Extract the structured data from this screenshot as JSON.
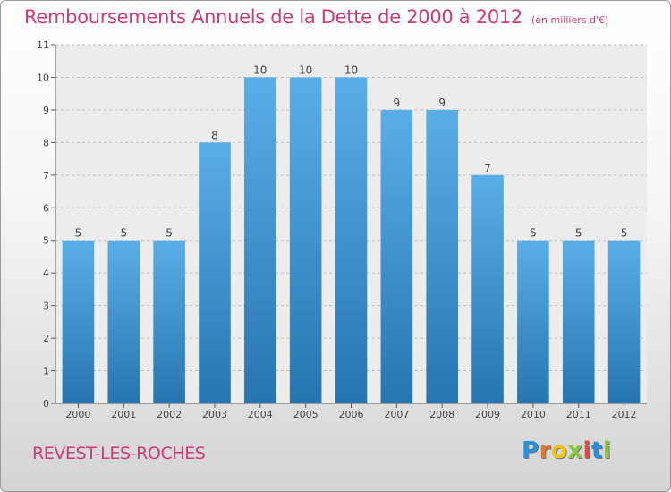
{
  "title": "Remboursements Annuels de la Dette de 2000 à 2012",
  "subtitle": "(en milliers d'€)",
  "place": "REVEST-LES-ROCHES",
  "logo": {
    "letters": [
      "P",
      "r",
      "o",
      "x",
      "i",
      "t",
      "i"
    ]
  },
  "colors": {
    "bar_light": "#5aaee8",
    "bar_dark": "#2775b0",
    "title": "#cc3a7a"
  },
  "chart_data": {
    "type": "bar",
    "title": "Remboursements Annuels de la Dette de 2000 à 2012",
    "subtitle": "(en milliers d'€)",
    "categories": [
      "2000",
      "2001",
      "2002",
      "2003",
      "2004",
      "2005",
      "2006",
      "2007",
      "2008",
      "2009",
      "2010",
      "2011",
      "2012"
    ],
    "values": [
      5,
      5,
      5,
      8,
      10,
      10,
      10,
      9,
      9,
      7,
      5,
      5,
      5
    ],
    "data_labels": [
      "5",
      "5",
      "5",
      "8",
      "10",
      "10",
      "10",
      "9",
      "9",
      "7",
      "5",
      "5",
      "5"
    ],
    "ylim": [
      0,
      11
    ],
    "yticks": [
      "0",
      "1",
      "2",
      "3",
      "4",
      "5",
      "6",
      "7",
      "8",
      "9",
      "10",
      "11"
    ],
    "grid": true,
    "legend": "none"
  }
}
